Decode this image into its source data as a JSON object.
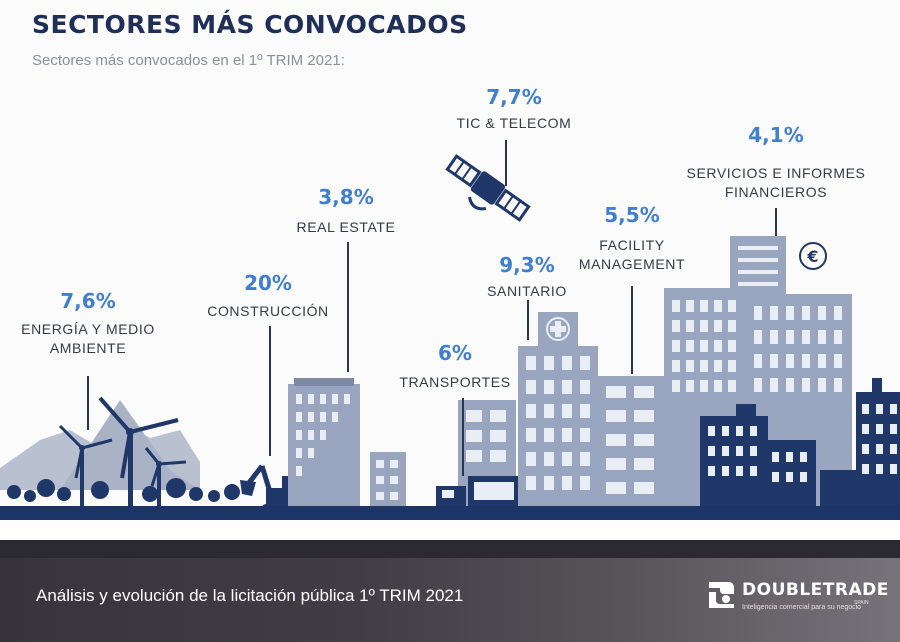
{
  "header": {
    "title": "SECTORES MÁS CONVOCADOS",
    "subtitle": "Sectores más convocados en el 1º TRIM 2021:"
  },
  "sectors": [
    {
      "name": "ENERGÍA Y MEDIO AMBIENTE",
      "label_lines": [
        "ENERGÍA Y MEDIO",
        "AMBIENTE"
      ],
      "percent": "7,6%"
    },
    {
      "name": "CONSTRUCCIÓN",
      "label_lines": [
        "CONSTRUCCIÓN"
      ],
      "percent": "20%"
    },
    {
      "name": "REAL ESTATE",
      "label_lines": [
        "REAL ESTATE"
      ],
      "percent": "3,8%"
    },
    {
      "name": "TRANSPORTES",
      "label_lines": [
        "TRANSPORTES"
      ],
      "percent": "6%"
    },
    {
      "name": "TIC & TELECOM",
      "label_lines": [
        "TIC & TELECOM"
      ],
      "percent": "7,7%"
    },
    {
      "name": "SANITARIO",
      "label_lines": [
        "SANITARIO"
      ],
      "percent": "9,3%"
    },
    {
      "name": "FACILITY MANAGEMENT",
      "label_lines": [
        "FACILITY",
        "MANAGEMENT"
      ],
      "percent": "5,5%"
    },
    {
      "name": "SERVICIOS E INFORMES FINANCIEROS",
      "label_lines": [
        "SERVICIOS E INFORMES",
        "FINANCIEROS"
      ],
      "percent": "4,1%"
    }
  ],
  "footer": {
    "text": "Análisis y evolución de la licitación pública 1º TRIM 2021",
    "logo_name": "DOUBLETRADE",
    "logo_tagline": "Inteligencia comercial para  su negocio",
    "logo_country": "SPAIN"
  },
  "icons": [
    "wind-turbine-icon",
    "excavator-icon",
    "truck-icon",
    "satellite-icon",
    "hospital-cross-icon",
    "euro-icon"
  ],
  "colors": {
    "title": "#1f2f58",
    "percent": "#3f7ed0",
    "navy": "#1f3769",
    "slate": "#9aa6bf",
    "ground": "#1c3466"
  }
}
